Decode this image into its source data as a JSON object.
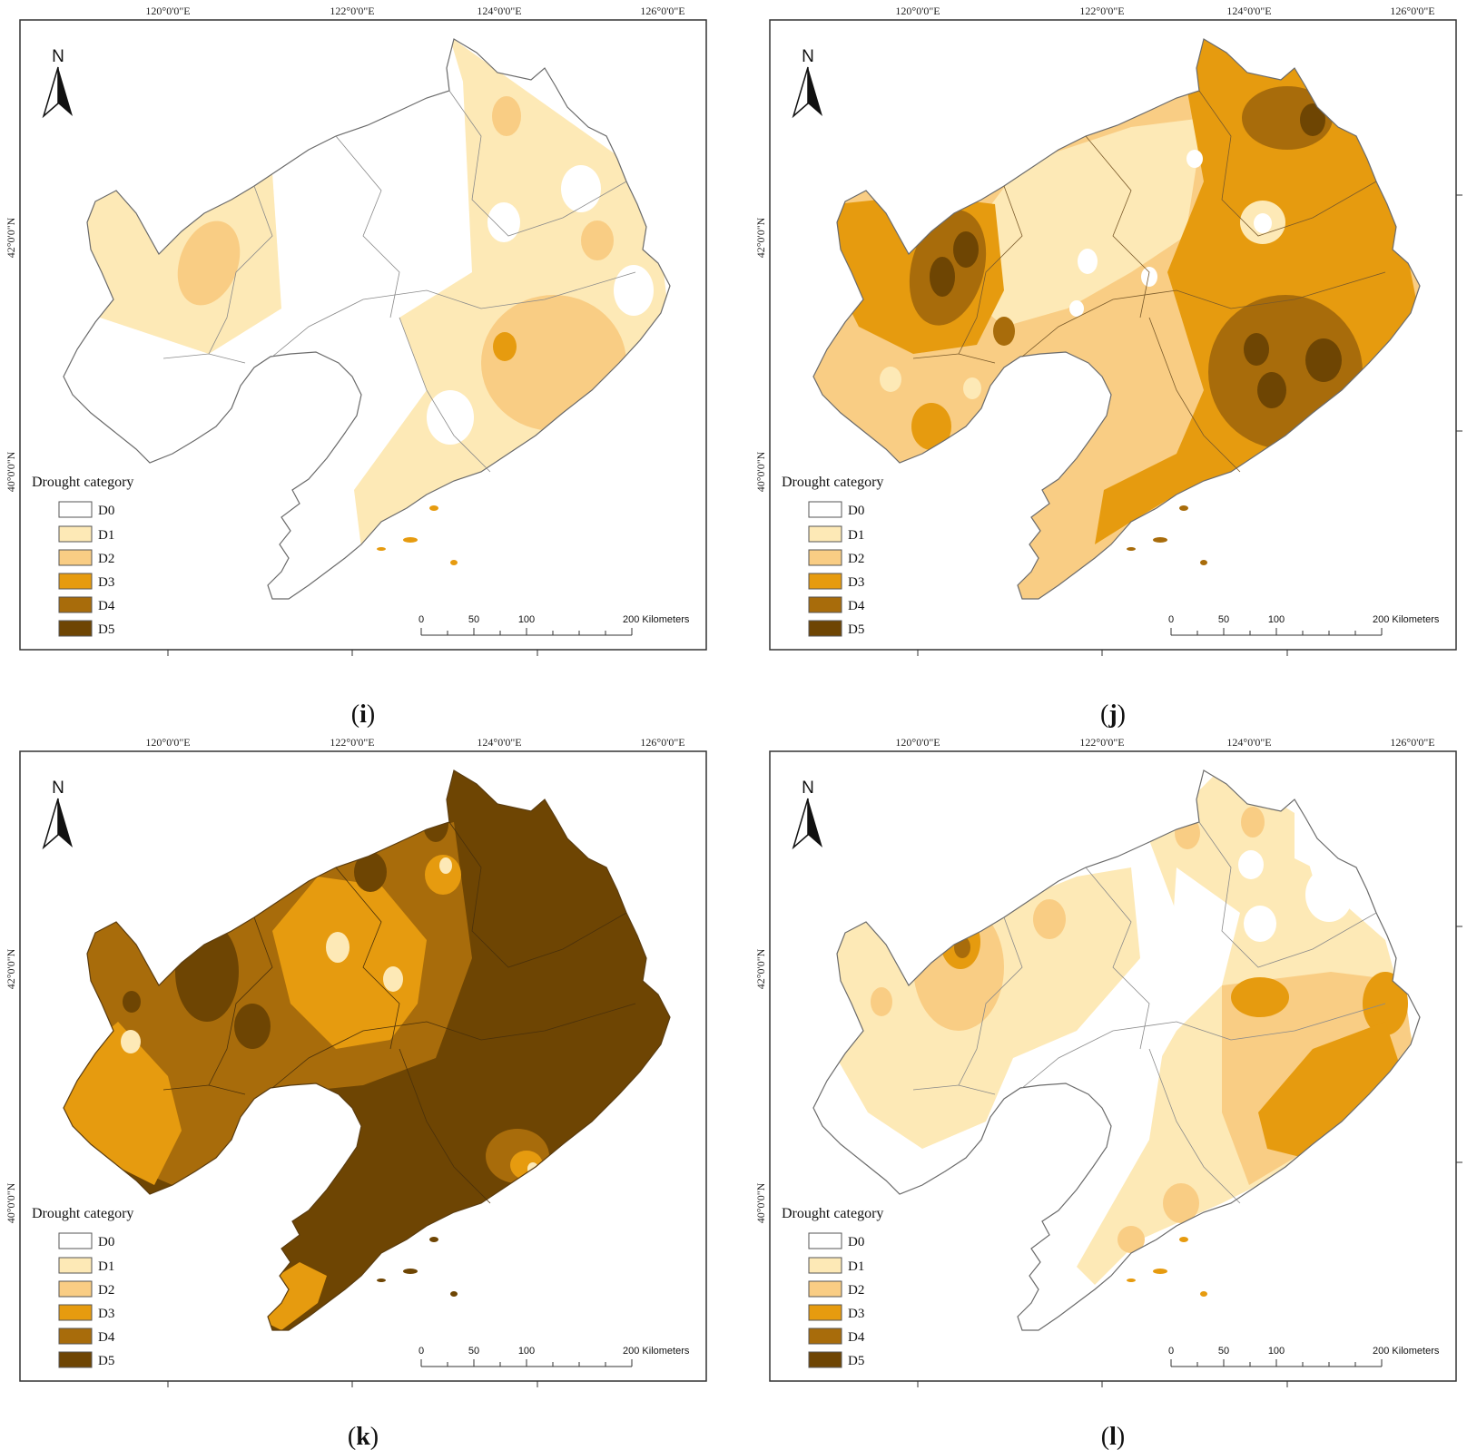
{
  "colors": {
    "D0": "#ffffff",
    "D1": "#fde9b6",
    "D2": "#f9cd84",
    "D3": "#e69b0f",
    "D4": "#a86c0b",
    "D5": "#6e4503",
    "boundary": "#6b6b6b",
    "frame": "#333333"
  },
  "axes": {
    "lon_labels": [
      "120°0'0\"E",
      "122°0'0\"E",
      "124°0'0\"E",
      "126°0'0\"E"
    ],
    "lat_labels": [
      "42°0'0\"N",
      "40°0'0\"N"
    ]
  },
  "legend": {
    "title": "Drought category",
    "items": [
      {
        "code": "D0",
        "color": "#ffffff"
      },
      {
        "code": "D1",
        "color": "#fde9b6"
      },
      {
        "code": "D2",
        "color": "#f9cd84"
      },
      {
        "code": "D3",
        "color": "#e69b0f"
      },
      {
        "code": "D4",
        "color": "#a86c0b"
      },
      {
        "code": "D5",
        "color": "#6e4503"
      }
    ]
  },
  "north_arrow": {
    "label": "N",
    "icon": "north-arrow-icon"
  },
  "scale_bar": {
    "labels": [
      "0",
      "50",
      "100",
      "200 Kilometers"
    ],
    "km": [
      0,
      50,
      100,
      200
    ]
  },
  "panels": [
    {
      "id": "i",
      "caption_open": "(",
      "caption_letter": "i",
      "caption_close": ")",
      "base": "D0"
    },
    {
      "id": "j",
      "caption_open": "(",
      "caption_letter": "j",
      "caption_close": ")",
      "base": "D2"
    },
    {
      "id": "k",
      "caption_open": "(",
      "caption_letter": "k",
      "caption_close": ")",
      "base": "D5"
    },
    {
      "id": "l",
      "caption_open": "(",
      "caption_letter": "l",
      "caption_close": ")",
      "base": "D0"
    }
  ]
}
